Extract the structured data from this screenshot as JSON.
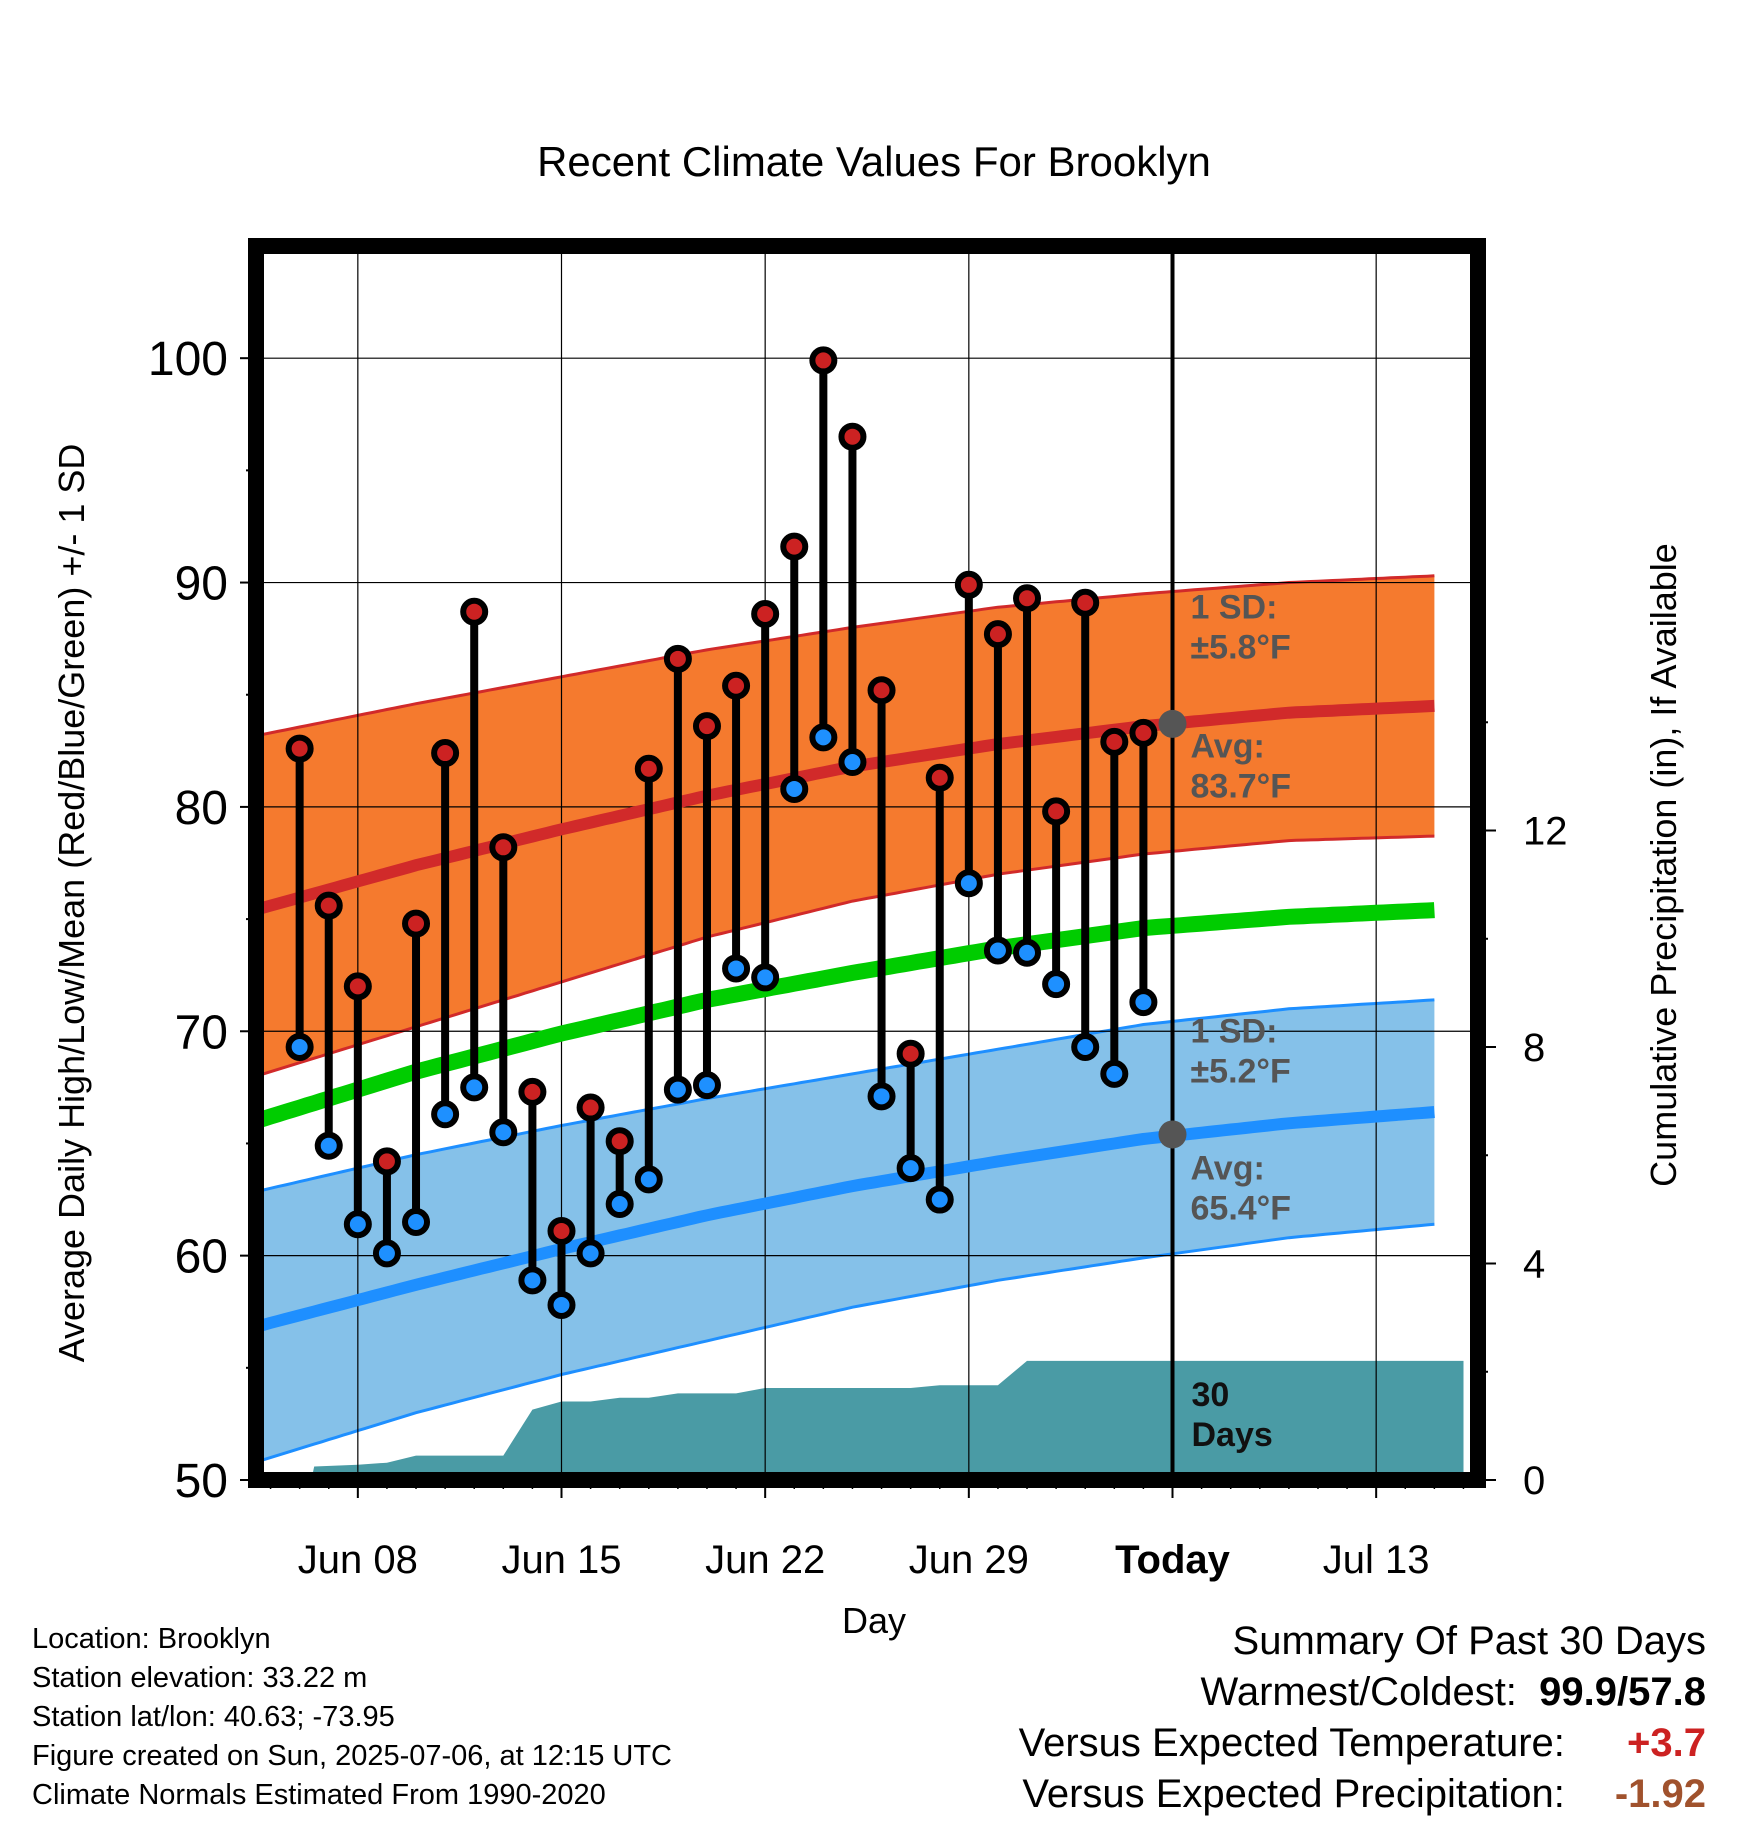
{
  "chart_data": {
    "type": "line",
    "title": "Recent Climate Values For Brooklyn",
    "xlabel": "Day",
    "ylabel": "Average Daily High/Low/Mean (Red/Blue/Green) +/- 1 SD",
    "y2label": "Cumulative Precipitation (in), If Available",
    "ylim": [
      50,
      105
    ],
    "y2lim": [
      0,
      22.8
    ],
    "x_day_range": [
      4.5,
      18.5
    ],
    "x_ticks": [
      {
        "day": 8,
        "label": "Jun 08"
      },
      {
        "day": 15,
        "label": "Jun 15"
      },
      {
        "day": 22,
        "label": "Jun 22"
      },
      {
        "day": 29,
        "label": "Jun 29"
      },
      {
        "day": 36,
        "label": "Today"
      },
      {
        "day": 43,
        "label": "Jul 13"
      }
    ],
    "y_ticks": [
      50,
      60,
      70,
      80,
      90,
      100
    ],
    "y2_ticks": [
      0,
      4,
      8,
      12
    ],
    "grid": true,
    "today_day": 36,
    "normals": {
      "days": [
        5,
        10,
        15,
        20,
        25,
        30,
        35,
        40,
        45
      ],
      "high_avg": [
        75.6,
        77.4,
        79.0,
        80.5,
        81.8,
        82.8,
        83.6,
        84.2,
        84.5
      ],
      "high_sd_upper": [
        83.3,
        84.6,
        85.8,
        87.0,
        88.0,
        88.9,
        89.5,
        90.0,
        90.3
      ],
      "high_sd_lower": [
        68.2,
        70.2,
        72.2,
        74.2,
        75.8,
        77.0,
        77.9,
        78.5,
        78.7
      ],
      "mean_avg": [
        66.2,
        68.2,
        69.9,
        71.4,
        72.6,
        73.7,
        74.6,
        75.1,
        75.4
      ],
      "low_avg": [
        57.0,
        58.7,
        60.3,
        61.8,
        63.1,
        64.2,
        65.2,
        65.9,
        66.4
      ],
      "low_sd_upper": [
        63.0,
        64.5,
        65.8,
        67.0,
        68.1,
        69.2,
        70.3,
        71.0,
        71.4
      ],
      "low_sd_lower": [
        51.0,
        53.0,
        54.7,
        56.2,
        57.7,
        58.9,
        59.9,
        60.8,
        61.4
      ]
    },
    "series": [
      {
        "name": "High",
        "color": "#cc2222",
        "days": [
          6,
          7,
          8,
          9,
          10,
          11,
          12,
          13,
          14,
          15,
          16,
          17,
          18,
          19,
          20,
          21,
          22,
          23,
          24,
          25,
          26,
          27,
          28,
          29,
          30,
          31,
          32,
          33,
          34,
          35
        ],
        "values": [
          82.6,
          75.6,
          72.0,
          64.2,
          74.8,
          82.4,
          88.7,
          78.2,
          67.3,
          61.1,
          66.6,
          65.1,
          81.7,
          86.6,
          83.6,
          85.4,
          88.6,
          91.6,
          99.9,
          96.5,
          85.2,
          69.0,
          81.3,
          89.9,
          87.7,
          89.3,
          79.8,
          89.1,
          82.9,
          83.3
        ]
      },
      {
        "name": "Low",
        "color": "#1e90ff",
        "days": [
          6,
          7,
          8,
          9,
          10,
          11,
          12,
          13,
          14,
          15,
          16,
          17,
          18,
          19,
          20,
          21,
          22,
          23,
          24,
          25,
          26,
          27,
          28,
          29,
          30,
          31,
          32,
          33,
          34,
          35
        ],
        "values": [
          69.3,
          64.9,
          61.4,
          60.1,
          61.5,
          66.3,
          67.5,
          65.5,
          58.9,
          57.8,
          60.1,
          62.3,
          63.4,
          67.4,
          67.6,
          72.8,
          72.4,
          80.8,
          83.1,
          82.0,
          67.1,
          63.9,
          62.5,
          76.6,
          73.6,
          73.5,
          72.1,
          69.3,
          68.1,
          71.3
        ]
      }
    ],
    "precip_cumulative": {
      "color": "#4a9ba5",
      "days": [
        5,
        6.4,
        6.5,
        8,
        9,
        10,
        12,
        13,
        14,
        15,
        16,
        17,
        18,
        19,
        20,
        21,
        22,
        23,
        24,
        25,
        26,
        27,
        28,
        29,
        30,
        31,
        32,
        33,
        34,
        35,
        36,
        46
      ],
      "values": [
        0,
        0,
        0.25,
        0.28,
        0.32,
        0.45,
        0.45,
        0.45,
        1.3,
        1.45,
        1.45,
        1.52,
        1.52,
        1.6,
        1.6,
        1.6,
        1.7,
        1.7,
        1.7,
        1.7,
        1.7,
        1.7,
        1.75,
        1.75,
        1.75,
        2.2,
        2.2,
        2.2,
        2.2,
        2.2,
        2.2,
        2.2
      ]
    },
    "annotations": {
      "high_sd_label": [
        "1 SD:",
        "±5.8°F"
      ],
      "high_avg_label": [
        "Avg:",
        "83.7°F"
      ],
      "low_sd_label": [
        "1 SD:",
        "±5.2°F"
      ],
      "low_avg_label": [
        "Avg:",
        "65.4°F"
      ],
      "precip_label": [
        "30",
        "Days"
      ],
      "today_high_avg": 83.7,
      "today_low_avg": 65.4
    }
  },
  "footer": {
    "location": "Location: Brooklyn",
    "elevation": "Station elevation: 33.22 m",
    "latlon": "Station lat/lon: 40.63; -73.95",
    "created": "Figure created on Sun, 2025-07-06, at 12:15 UTC",
    "normals": "Climate Normals Estimated From 1990-2020"
  },
  "summary": {
    "title": "Summary Of Past 30 Days",
    "warm_cold_label": "Warmest/Coldest:",
    "warmest": "99.9",
    "slash": "/",
    "coldest": "57.8",
    "temp_label": "Versus Expected Temperature:",
    "temp_value": "+3.7",
    "temp_color": "#cc2222",
    "precip_label": "Versus Expected Precipitation:",
    "precip_value": "-1.92",
    "precip_color": "#a0522d"
  },
  "colors": {
    "high_band": "#f57a2e",
    "high_line": "#d12a2a",
    "mean_line": "#00cc00",
    "low_band": "#85c1e9",
    "low_line": "#1e8fff",
    "precip_fill": "#4a9ba5"
  }
}
